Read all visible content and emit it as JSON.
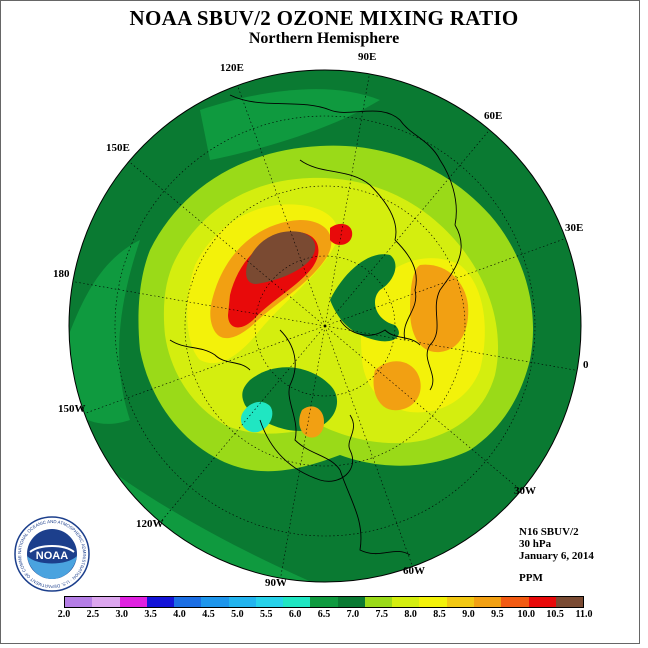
{
  "title": "NOAA SBUV/2 OZONE MIXING RATIO",
  "subtitle": "Northern Hemisphere",
  "longitude_labels": {
    "e120": "120E",
    "e90": "90E",
    "e60": "60E",
    "e150": "150E",
    "e30": "30E",
    "l180": "180",
    "l0": "0",
    "w150": "150W",
    "w30": "30W",
    "w120": "120W",
    "w60": "60W",
    "w90": "90W"
  },
  "info": {
    "instrument": "N16 SBUV/2",
    "pressure": "30 hPa",
    "date": "January 6, 2014",
    "units": "PPM"
  },
  "logo": {
    "text": "NOAA",
    "ring_text": "NATIONAL OCEANIC AND ATMOSPHERIC ADMINISTRATION · U.S. DEPARTMENT OF COMMERCE"
  },
  "colorbar": {
    "ticks": [
      "2.0",
      "2.5",
      "3.0",
      "3.5",
      "4.0",
      "4.5",
      "5.0",
      "5.5",
      "6.0",
      "6.5",
      "7.0",
      "7.5",
      "8.0",
      "8.5",
      "9.0",
      "9.5",
      "10.0",
      "10.5",
      "11.0"
    ],
    "colors": [
      "#b57ee6",
      "#dca6ee",
      "#e021e0",
      "#1414d8",
      "#1b6ee4",
      "#1e96ec",
      "#22b4ef",
      "#27d2ea",
      "#20e6c2",
      "#0f9a3f",
      "#0a7a32",
      "#9ada18",
      "#d4ee0f",
      "#f3f20a",
      "#f2c812",
      "#f2a012",
      "#f25a12",
      "#e80a0a",
      "#7a4a32"
    ]
  },
  "map_colors": {
    "bg_green": "#0a7a32",
    "mid_green": "#0f9a3f",
    "light_green": "#9ada18",
    "yellow_green": "#d4ee0f",
    "yellow": "#f3f20a",
    "orange": "#f2a012",
    "red": "#e80a0a",
    "brown": "#7a4a32",
    "cyan": "#20e6c2"
  }
}
